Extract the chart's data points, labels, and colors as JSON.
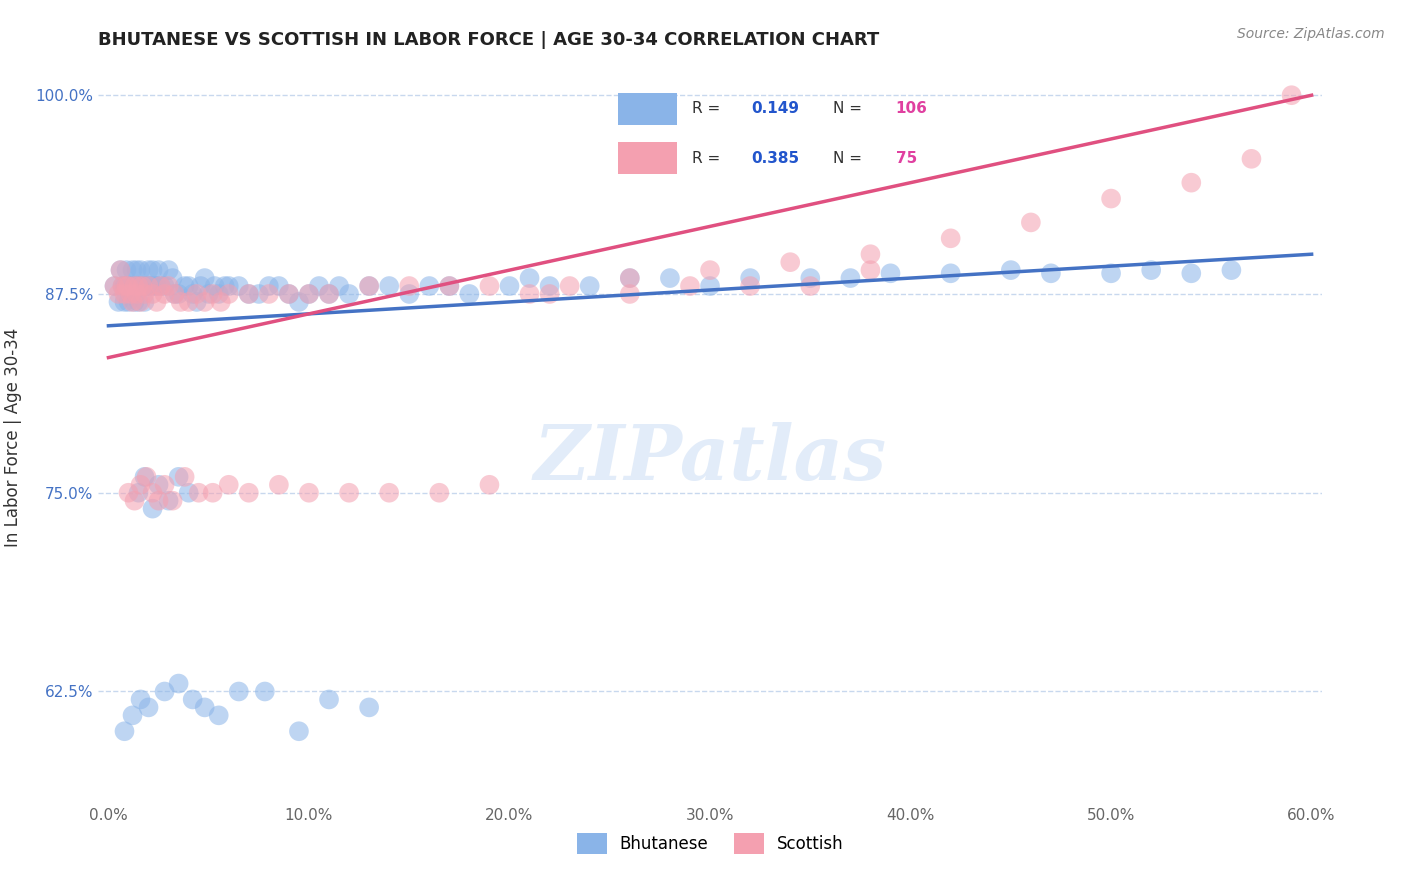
{
  "title": "BHUTANESE VS SCOTTISH IN LABOR FORCE | AGE 30-34 CORRELATION CHART",
  "source_text": "Source: ZipAtlas.com",
  "ylabel": "In Labor Force | Age 30-34",
  "xlim": [
    -0.005,
    0.605
  ],
  "ylim": [
    0.555,
    1.015
  ],
  "xticks": [
    0.0,
    0.1,
    0.2,
    0.3,
    0.4,
    0.5,
    0.6
  ],
  "xticklabels": [
    "0.0%",
    "10.0%",
    "20.0%",
    "30.0%",
    "40.0%",
    "50.0%",
    "60.0%"
  ],
  "yticks": [
    0.625,
    0.75,
    0.875,
    1.0
  ],
  "yticklabels": [
    "62.5%",
    "75.0%",
    "87.5%",
    "100.0%"
  ],
  "bhutanese_R": 0.149,
  "bhutanese_N": 106,
  "scottish_R": 0.385,
  "scottish_N": 75,
  "blue_color": "#8ab4e8",
  "pink_color": "#f4a0b0",
  "blue_line_color": "#4472c4",
  "pink_line_color": "#e05080",
  "legend_label_blue": "Bhutanese",
  "legend_label_pink": "Scottish",
  "watermark": "ZIPatlas",
  "background_color": "#ffffff",
  "grid_color": "#c8d8ee",
  "title_color": "#222222",
  "axis_label_color": "#333333",
  "r_value_color": "#2255cc",
  "n_value_color": "#e040a0",
  "blue_line_intercept": 0.855,
  "blue_line_slope": 0.075,
  "pink_line_intercept": 0.835,
  "pink_line_slope": 0.275,
  "bhutanese_x": [
    0.003,
    0.005,
    0.006,
    0.007,
    0.008,
    0.008,
    0.009,
    0.01,
    0.01,
    0.01,
    0.011,
    0.012,
    0.012,
    0.013,
    0.013,
    0.014,
    0.014,
    0.015,
    0.015,
    0.016,
    0.016,
    0.017,
    0.018,
    0.018,
    0.019,
    0.02,
    0.02,
    0.021,
    0.022,
    0.023,
    0.024,
    0.025,
    0.026,
    0.028,
    0.03,
    0.032,
    0.033,
    0.035,
    0.038,
    0.04,
    0.042,
    0.044,
    0.046,
    0.048,
    0.05,
    0.053,
    0.055,
    0.058,
    0.06,
    0.065,
    0.07,
    0.075,
    0.08,
    0.085,
    0.09,
    0.095,
    0.1,
    0.105,
    0.11,
    0.115,
    0.12,
    0.13,
    0.14,
    0.15,
    0.16,
    0.17,
    0.18,
    0.2,
    0.21,
    0.22,
    0.24,
    0.26,
    0.28,
    0.3,
    0.32,
    0.35,
    0.37,
    0.39,
    0.42,
    0.45,
    0.47,
    0.5,
    0.52,
    0.54,
    0.56,
    0.015,
    0.018,
    0.022,
    0.025,
    0.03,
    0.035,
    0.04,
    0.008,
    0.012,
    0.016,
    0.02,
    0.028,
    0.035,
    0.042,
    0.048,
    0.055,
    0.065,
    0.078,
    0.095,
    0.11,
    0.13
  ],
  "bhutanese_y": [
    0.88,
    0.87,
    0.89,
    0.88,
    0.88,
    0.87,
    0.89,
    0.88,
    0.88,
    0.87,
    0.88,
    0.89,
    0.88,
    0.88,
    0.87,
    0.88,
    0.89,
    0.88,
    0.87,
    0.88,
    0.89,
    0.88,
    0.88,
    0.87,
    0.88,
    0.89,
    0.88,
    0.88,
    0.89,
    0.88,
    0.88,
    0.89,
    0.88,
    0.88,
    0.89,
    0.885,
    0.875,
    0.875,
    0.88,
    0.88,
    0.875,
    0.87,
    0.88,
    0.885,
    0.875,
    0.88,
    0.875,
    0.88,
    0.88,
    0.88,
    0.875,
    0.875,
    0.88,
    0.88,
    0.875,
    0.87,
    0.875,
    0.88,
    0.875,
    0.88,
    0.875,
    0.88,
    0.88,
    0.875,
    0.88,
    0.88,
    0.875,
    0.88,
    0.885,
    0.88,
    0.88,
    0.885,
    0.885,
    0.88,
    0.885,
    0.885,
    0.885,
    0.888,
    0.888,
    0.89,
    0.888,
    0.888,
    0.89,
    0.888,
    0.89,
    0.75,
    0.76,
    0.74,
    0.755,
    0.745,
    0.76,
    0.75,
    0.6,
    0.61,
    0.62,
    0.615,
    0.625,
    0.63,
    0.62,
    0.615,
    0.61,
    0.625,
    0.625,
    0.6,
    0.62,
    0.615
  ],
  "scottish_x": [
    0.003,
    0.005,
    0.006,
    0.007,
    0.008,
    0.009,
    0.01,
    0.011,
    0.012,
    0.013,
    0.014,
    0.015,
    0.016,
    0.017,
    0.018,
    0.02,
    0.022,
    0.024,
    0.026,
    0.028,
    0.03,
    0.033,
    0.036,
    0.04,
    0.044,
    0.048,
    0.052,
    0.056,
    0.06,
    0.07,
    0.08,
    0.09,
    0.1,
    0.11,
    0.13,
    0.15,
    0.17,
    0.19,
    0.21,
    0.23,
    0.26,
    0.29,
    0.32,
    0.35,
    0.38,
    0.01,
    0.013,
    0.016,
    0.019,
    0.022,
    0.025,
    0.028,
    0.032,
    0.038,
    0.045,
    0.052,
    0.06,
    0.07,
    0.085,
    0.1,
    0.12,
    0.14,
    0.165,
    0.19,
    0.22,
    0.26,
    0.3,
    0.34,
    0.38,
    0.42,
    0.46,
    0.5,
    0.54,
    0.57,
    0.59
  ],
  "scottish_y": [
    0.88,
    0.875,
    0.89,
    0.88,
    0.875,
    0.88,
    0.88,
    0.875,
    0.87,
    0.88,
    0.875,
    0.88,
    0.87,
    0.88,
    0.875,
    0.88,
    0.875,
    0.87,
    0.88,
    0.875,
    0.88,
    0.875,
    0.87,
    0.87,
    0.875,
    0.87,
    0.875,
    0.87,
    0.875,
    0.875,
    0.875,
    0.875,
    0.875,
    0.875,
    0.88,
    0.88,
    0.88,
    0.88,
    0.875,
    0.88,
    0.875,
    0.88,
    0.88,
    0.88,
    0.89,
    0.75,
    0.745,
    0.755,
    0.76,
    0.75,
    0.745,
    0.755,
    0.745,
    0.76,
    0.75,
    0.75,
    0.755,
    0.75,
    0.755,
    0.75,
    0.75,
    0.75,
    0.75,
    0.755,
    0.875,
    0.885,
    0.89,
    0.895,
    0.9,
    0.91,
    0.92,
    0.935,
    0.945,
    0.96,
    1.0
  ]
}
